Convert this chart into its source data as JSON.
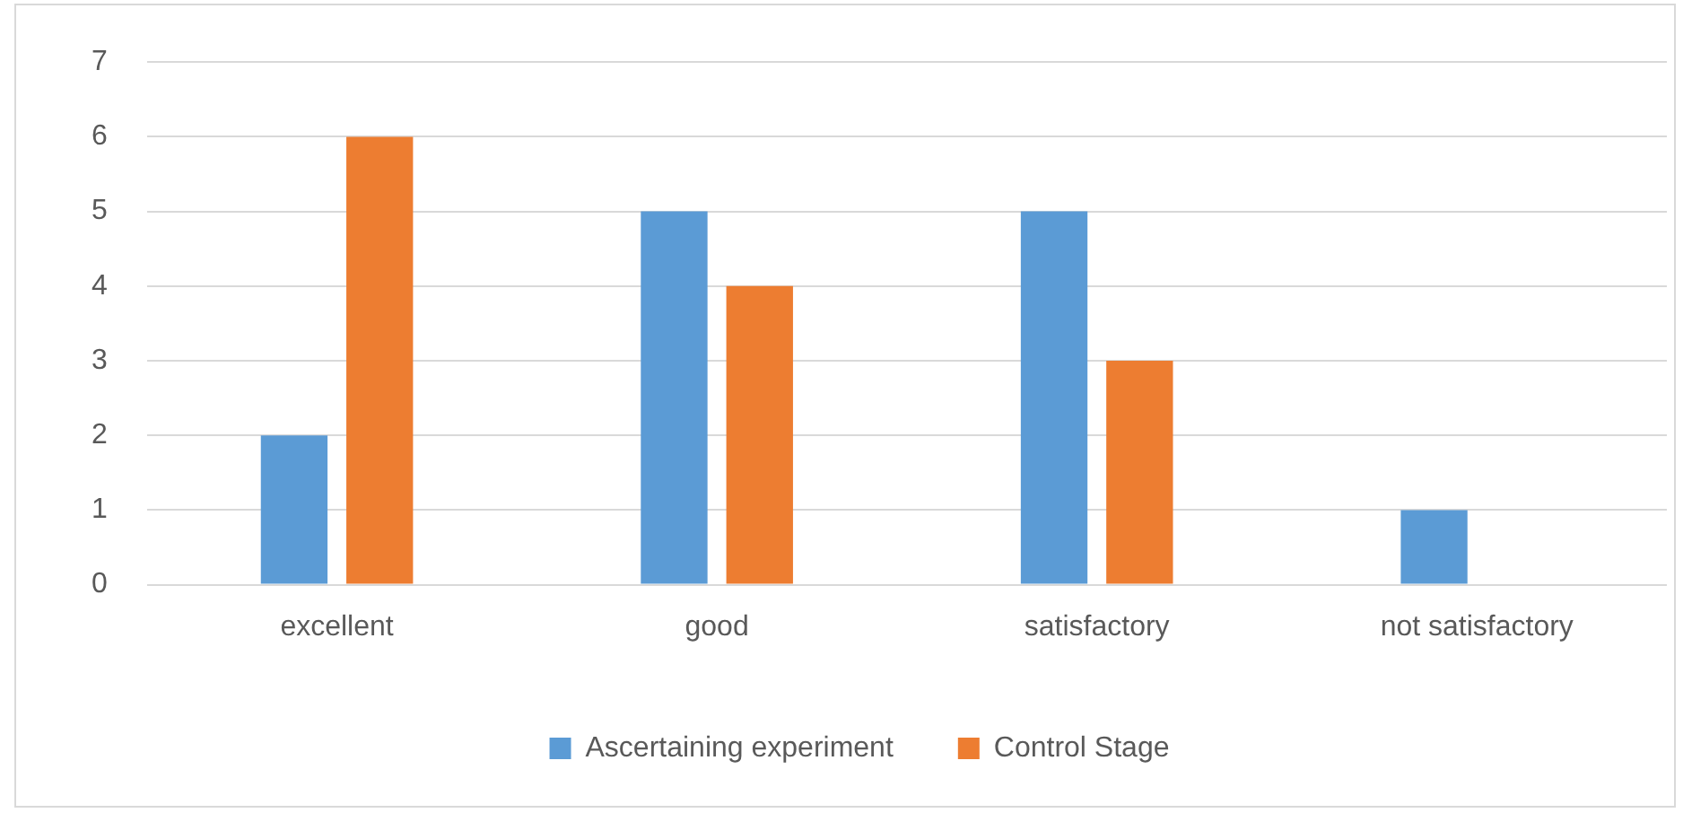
{
  "chart_data": {
    "type": "bar",
    "categories": [
      "excellent",
      "good",
      "satisfactory",
      "not satisfactory"
    ],
    "series": [
      {
        "name": "Ascertaining experiment",
        "color": "#5b9bd5",
        "values": [
          2,
          5,
          5,
          1
        ]
      },
      {
        "name": "Control Stage",
        "color": "#ed7d31",
        "values": [
          6,
          4,
          3,
          0
        ]
      }
    ],
    "ylim": [
      0,
      7
    ],
    "yticks": [
      0,
      1,
      2,
      3,
      4,
      5,
      6,
      7
    ],
    "grid": "y",
    "legend": "bottom"
  }
}
